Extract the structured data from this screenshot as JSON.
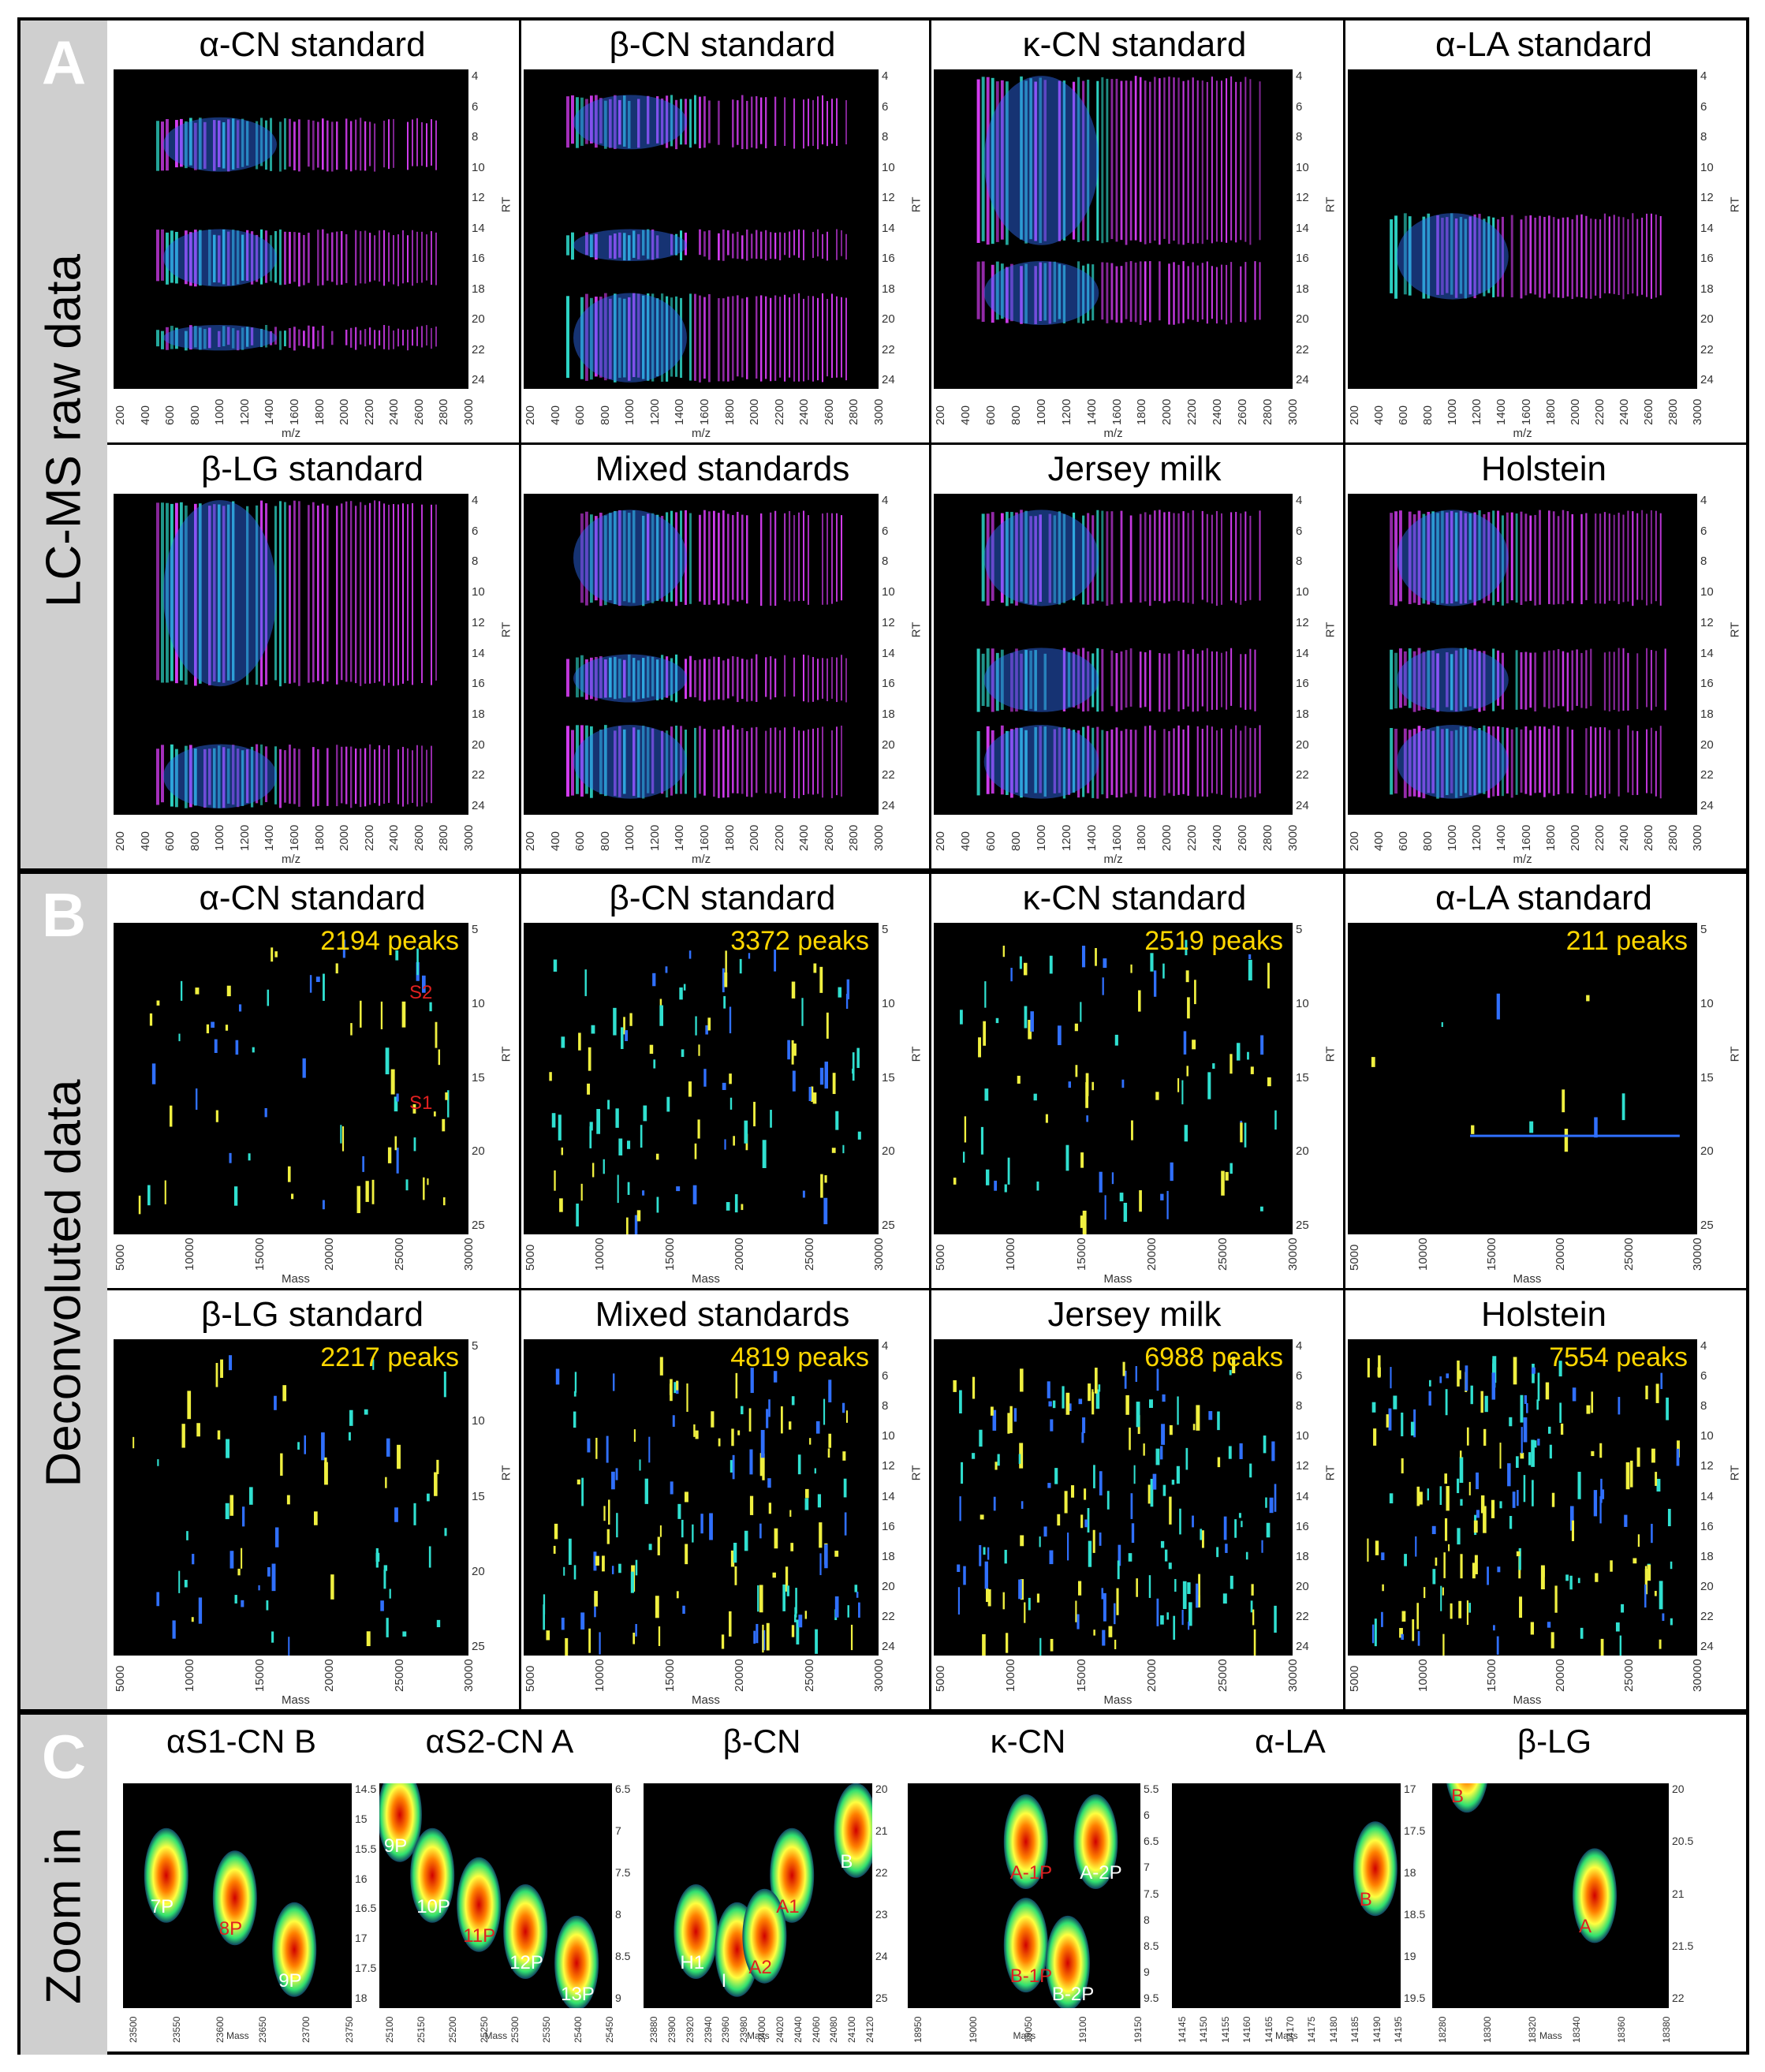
{
  "sections": {
    "a": {
      "letter": "A",
      "label": "LC-MS raw data"
    },
    "b": {
      "letter": "B",
      "label": "Deconvoluted data"
    },
    "c": {
      "letter": "C",
      "label": "Zoom in"
    }
  },
  "raw_panels": [
    {
      "title": "α-CN standard"
    },
    {
      "title": "β-CN standard"
    },
    {
      "title": "κ-CN standard"
    },
    {
      "title": "α-LA standard"
    },
    {
      "title": "β-LG standard"
    },
    {
      "title": "Mixed standards"
    },
    {
      "title": "Jersey milk"
    },
    {
      "title": "Holstein"
    }
  ],
  "raw_axes": {
    "xlabel": "m/z",
    "ylabel": "RT",
    "xticks": [
      "200",
      "400",
      "600",
      "800",
      "1000",
      "1200",
      "1400",
      "1600",
      "1800",
      "2000",
      "2200",
      "2400",
      "2600",
      "2800",
      "3000"
    ],
    "yticks": [
      "4",
      "6",
      "8",
      "10",
      "12",
      "14",
      "16",
      "18",
      "20",
      "22",
      "24"
    ]
  },
  "deconv_panels": [
    {
      "title": "α-CN standard",
      "peaks": "2194 peaks",
      "annotations": [
        "S2",
        "S1"
      ]
    },
    {
      "title": "β-CN standard",
      "peaks": "3372 peaks",
      "annotations": []
    },
    {
      "title": "κ-CN standard",
      "peaks": "2519 peaks",
      "annotations": []
    },
    {
      "title": "α-LA standard",
      "peaks": "211 peaks",
      "annotations": []
    },
    {
      "title": "β-LG standard",
      "peaks": "2217 peaks",
      "annotations": []
    },
    {
      "title": "Mixed standards",
      "peaks": "4819 peaks",
      "annotations": []
    },
    {
      "title": "Jersey milk",
      "peaks": "6988 peaks",
      "annotations": []
    },
    {
      "title": "Holstein",
      "peaks": "7554 peaks",
      "annotations": []
    }
  ],
  "deconv_axes": {
    "xlabel": "Mass",
    "ylabel": "RT",
    "xticks": [
      "5000",
      "10000",
      "15000",
      "20000",
      "25000",
      "30000"
    ],
    "yticks_top": [
      "5",
      "10",
      "15",
      "20",
      "25"
    ],
    "yticks_bottom_fine": [
      "4",
      "6",
      "8",
      "10",
      "12",
      "14",
      "16",
      "18",
      "20",
      "22",
      "24"
    ]
  },
  "zoom_panels": [
    {
      "title": "αS1-CN B",
      "xticks": [
        "23500",
        "23550",
        "23600",
        "23650",
        "23700",
        "23750"
      ],
      "yticks": [
        "14.5",
        "15",
        "15.5",
        "16",
        "16.5",
        "17",
        "17.5",
        "18"
      ],
      "labels": [
        {
          "text": "7P",
          "color": "#ffffff"
        },
        {
          "text": "8P",
          "color": "#e02020"
        },
        {
          "text": "9P",
          "color": "#ffffff"
        }
      ]
    },
    {
      "title": "αS2-CN A",
      "xticks": [
        "25100",
        "25150",
        "25200",
        "25250",
        "25300",
        "25350",
        "25400",
        "25450"
      ],
      "yticks": [
        "6.5",
        "7",
        "7.5",
        "8",
        "8.5",
        "9"
      ],
      "labels": [
        {
          "text": "9P",
          "color": "#ffffff"
        },
        {
          "text": "10P",
          "color": "#ffffff"
        },
        {
          "text": "11P",
          "color": "#e02020"
        },
        {
          "text": "12P",
          "color": "#ffffff"
        },
        {
          "text": "13P",
          "color": "#ffffff"
        }
      ]
    },
    {
      "title": "β-CN",
      "xticks": [
        "23880",
        "23900",
        "23920",
        "23940",
        "23960",
        "23980",
        "24000",
        "24020",
        "24040",
        "24060",
        "24080",
        "24100",
        "24120"
      ],
      "yticks": [
        "20",
        "21",
        "22",
        "23",
        "24",
        "25"
      ],
      "labels": [
        {
          "text": "B",
          "color": "#ffffff"
        },
        {
          "text": "A1",
          "color": "#e02020"
        },
        {
          "text": "H1",
          "color": "#ffffff"
        },
        {
          "text": "I",
          "color": "#ffffff"
        },
        {
          "text": "A2",
          "color": "#e02020"
        }
      ]
    },
    {
      "title": "κ-CN",
      "xticks": [
        "18950",
        "19000",
        "19050",
        "19100",
        "19150"
      ],
      "yticks": [
        "5.5",
        "6",
        "6.5",
        "7",
        "7.5",
        "8",
        "8.5",
        "9",
        "9.5"
      ],
      "labels": [
        {
          "text": "A-1P",
          "color": "#e02020"
        },
        {
          "text": "A-2P",
          "color": "#ffffff"
        },
        {
          "text": "B-1P",
          "color": "#e02020"
        },
        {
          "text": "B-2P",
          "color": "#ffffff"
        }
      ]
    },
    {
      "title": "α-LA",
      "xticks": [
        "14145",
        "14150",
        "14155",
        "14160",
        "14165",
        "14170",
        "14175",
        "14180",
        "14185",
        "14190",
        "14195"
      ],
      "yticks": [
        "17",
        "17.5",
        "18",
        "18.5",
        "19",
        "19.5"
      ],
      "labels": [
        {
          "text": "B",
          "color": "#e02020"
        }
      ]
    },
    {
      "title": "β-LG",
      "xticks": [
        "18280",
        "18300",
        "18320",
        "18340",
        "18360",
        "18380"
      ],
      "yticks": [
        "20",
        "20.5",
        "21",
        "21.5",
        "22"
      ],
      "labels": [
        {
          "text": "B",
          "color": "#e02020"
        },
        {
          "text": "A",
          "color": "#e02020"
        }
      ]
    }
  ],
  "zoom_axes": {
    "xlabel": "Mass"
  },
  "colors": {
    "background": "#000000",
    "magenta": "#e040ff",
    "blue": "#3070ff",
    "cyan": "#30e0d0",
    "yellow": "#f0f040",
    "red": "#e02020",
    "peaks_text": "#ffd700",
    "section_bar": "#cfcfcf"
  }
}
